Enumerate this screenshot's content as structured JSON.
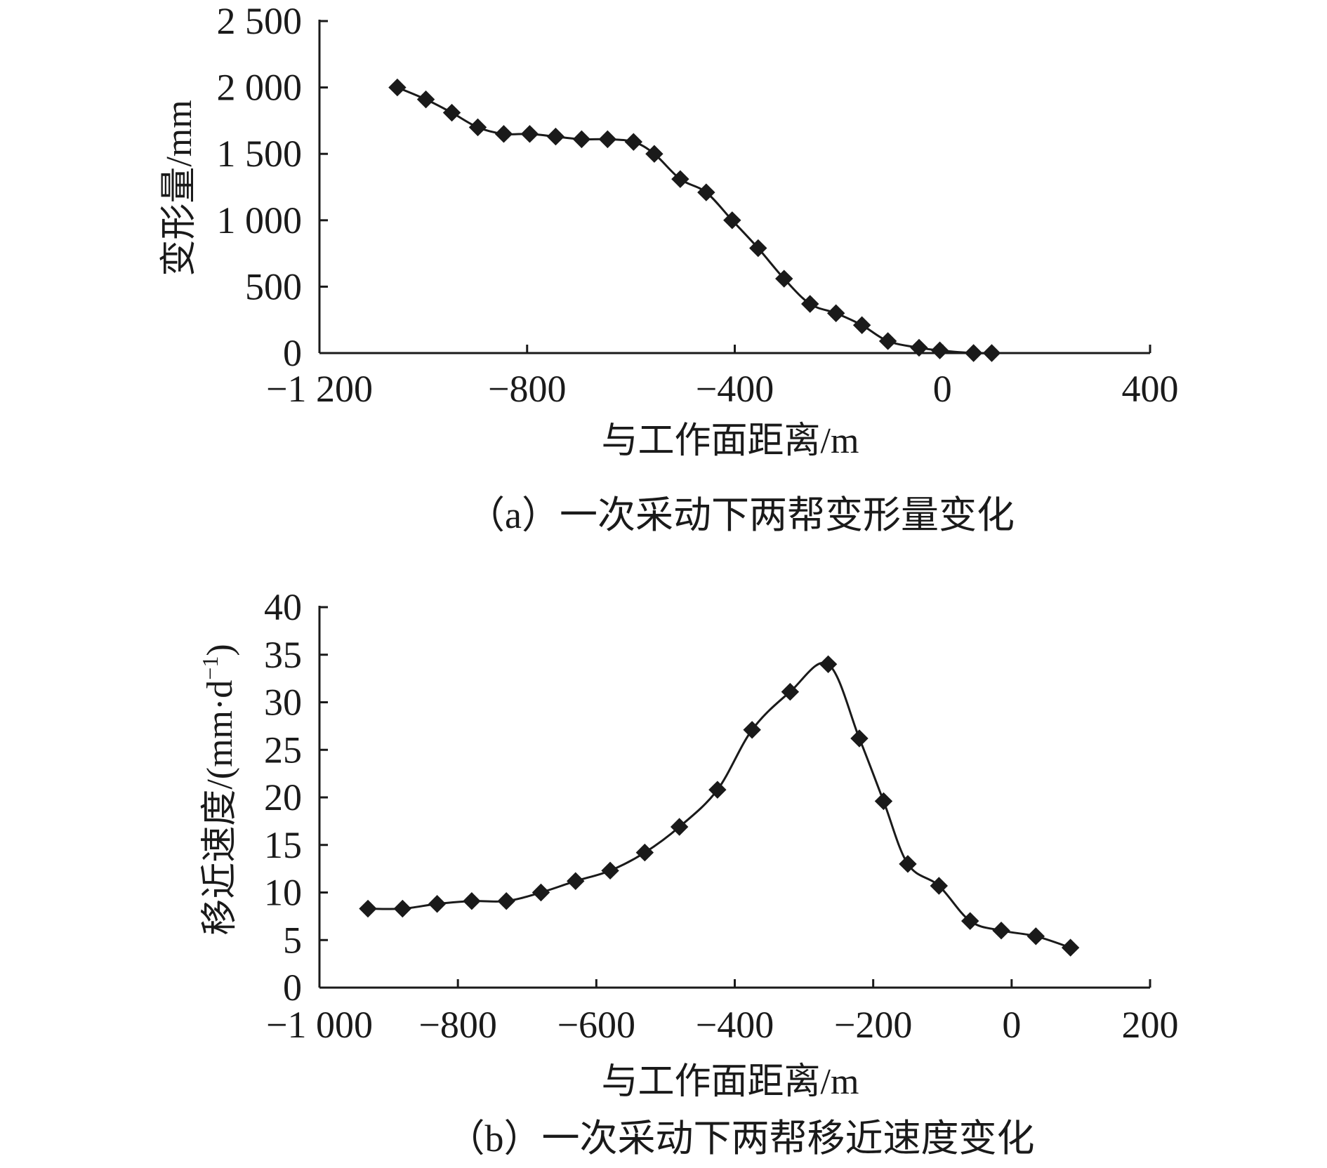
{
  "chart_data": [
    {
      "type": "line",
      "marker": "diamond",
      "xlabel": "与工作面距离/m",
      "ylabel": "变形量/mm",
      "caption": "（a）一次采动下两帮变形量变化",
      "xlim": [
        -1200,
        400
      ],
      "ylim": [
        0,
        2500
      ],
      "xticks": [
        -1200,
        -800,
        -400,
        0,
        400
      ],
      "xtick_labels": [
        "−1 200",
        "−800",
        "−400",
        "0",
        "400"
      ],
      "yticks": [
        0,
        500,
        1000,
        1500,
        2000,
        2500
      ],
      "ytick_labels": [
        "0",
        "500",
        "1 000",
        "1 500",
        "2 000",
        "2 500"
      ],
      "series": [
        {
          "name": "变形量",
          "x": [
            -1050,
            -995,
            -945,
            -895,
            -845,
            -795,
            -745,
            -695,
            -645,
            -595,
            -555,
            -505,
            -455,
            -405,
            -355,
            -305,
            -255,
            -205,
            -155,
            -105,
            -45,
            -5,
            60,
            95
          ],
          "y": [
            2000,
            1910,
            1810,
            1700,
            1650,
            1650,
            1630,
            1610,
            1610,
            1590,
            1500,
            1310,
            1210,
            1000,
            790,
            560,
            370,
            300,
            210,
            90,
            40,
            20,
            0,
            0
          ]
        }
      ]
    },
    {
      "type": "line",
      "marker": "diamond",
      "xlabel": "与工作面距离/m",
      "ylabel": "移近速度/(mm·d",
      "ylabel_sup": "−1",
      "ylabel_end": ")",
      "caption": "（b）一次采动下两帮移近速度变化",
      "xlim": [
        -1000,
        200
      ],
      "ylim": [
        0,
        40
      ],
      "xticks": [
        -1000,
        -800,
        -600,
        -400,
        -200,
        0,
        200
      ],
      "xtick_labels": [
        "−1 000",
        "−800",
        "−600",
        "−400",
        "−200",
        "0",
        "200"
      ],
      "yticks": [
        0,
        5,
        10,
        15,
        20,
        25,
        30,
        35,
        40
      ],
      "ytick_labels": [
        "0",
        "5",
        "10",
        "15",
        "20",
        "25",
        "30",
        "35",
        "40"
      ],
      "series": [
        {
          "name": "移近速度",
          "x": [
            -930,
            -880,
            -830,
            -780,
            -730,
            -680,
            -630,
            -580,
            -530,
            -480,
            -425,
            -375,
            -320,
            -265,
            -220,
            -185,
            -150,
            -105,
            -60,
            -15,
            35,
            85
          ],
          "y": [
            8.3,
            8.3,
            8.8,
            9.1,
            9.1,
            10.0,
            11.2,
            12.3,
            14.2,
            16.9,
            20.8,
            27.1,
            31.1,
            34.0,
            26.2,
            19.6,
            13.0,
            10.7,
            7.0,
            6.0,
            5.4,
            4.2
          ]
        }
      ]
    }
  ]
}
